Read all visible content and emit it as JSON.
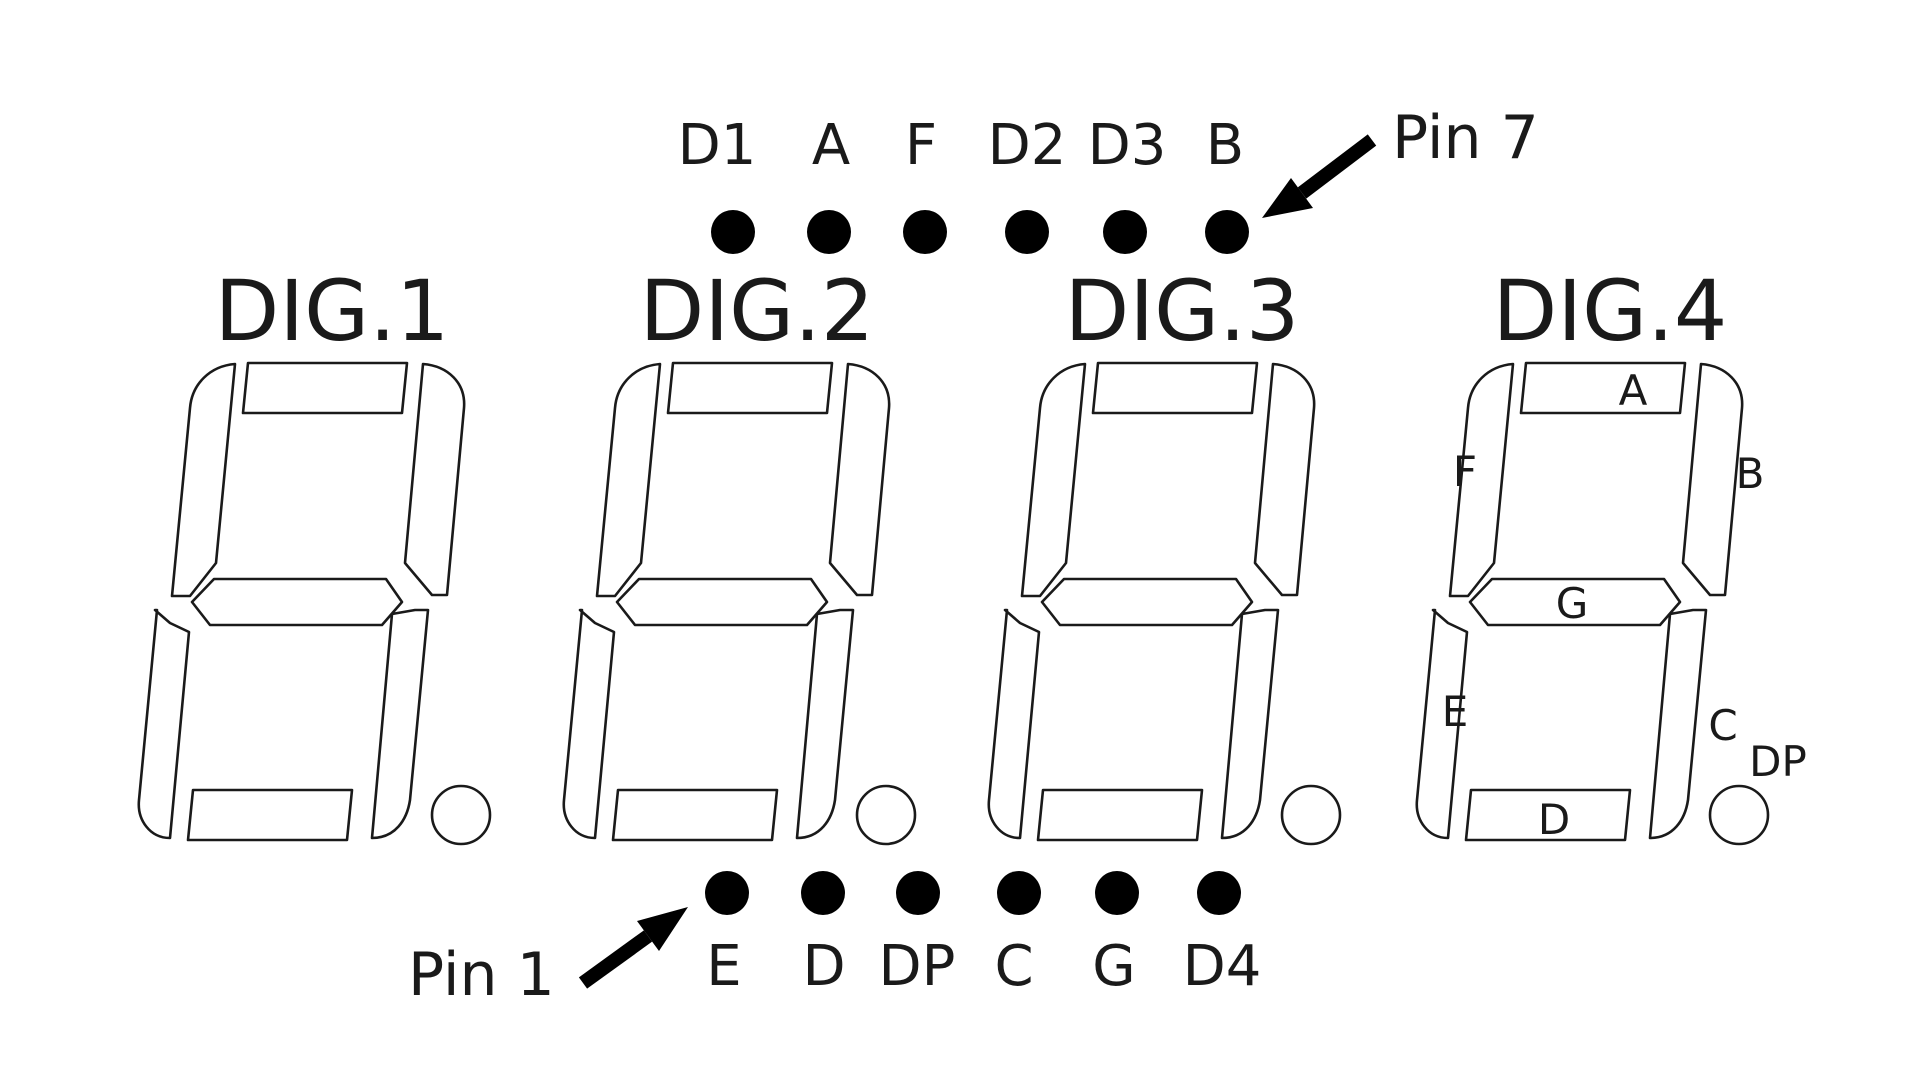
{
  "digits": [
    {
      "title": "DIG.1",
      "show_segment_labels": false
    },
    {
      "title": "DIG.2",
      "show_segment_labels": false
    },
    {
      "title": "DIG.3",
      "show_segment_labels": false
    },
    {
      "title": "DIG.4",
      "show_segment_labels": true
    }
  ],
  "segment_labels": {
    "a": "A",
    "b": "B",
    "c": "C",
    "d": "D",
    "e": "E",
    "f": "F",
    "g": "G",
    "dp": "DP"
  },
  "top_pins": [
    "D1",
    "A",
    "F",
    "D2",
    "D3",
    "B"
  ],
  "bottom_pins": [
    "E",
    "D",
    "DP",
    "C",
    "G",
    "D4"
  ],
  "pin7_label": "Pin 7",
  "pin1_label": "Pin 1",
  "colors": {
    "stroke": "#1a1a1a",
    "dot": "#000000",
    "background": "#ffffff"
  }
}
